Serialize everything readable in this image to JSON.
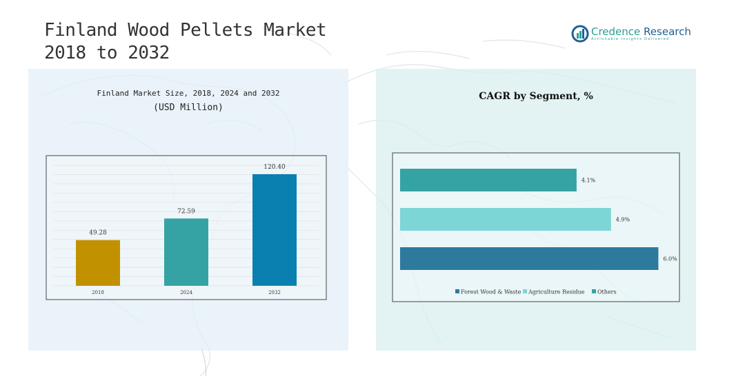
{
  "page": {
    "title_line1": "Finland Wood Pellets Market",
    "title_line2": "2018 to 2032"
  },
  "logo": {
    "name_part1": "Credence",
    "name_part2": " Research",
    "tagline": "Actionable Insights Delivered",
    "colors": {
      "primary": "#1f5f94",
      "accent": "#2a9d8f"
    }
  },
  "chart_data": [
    {
      "type": "bar",
      "title": "Finland Market Size, 2018, 2024 and 2032",
      "subtitle": "(USD Million)",
      "categories": [
        "2018",
        "2024",
        "2032"
      ],
      "values": [
        49.28,
        72.59,
        120.4
      ],
      "value_labels": [
        "49.28",
        "72.59",
        "120.40"
      ],
      "colors": [
        "#c29100",
        "#35a3a3",
        "#0a80b0"
      ],
      "ylim": [
        0,
        130
      ],
      "grid": true,
      "xlabel": "",
      "ylabel": ""
    },
    {
      "type": "bar",
      "orientation": "horizontal",
      "title": "CAGR by Segment, %",
      "categories": [
        "Forest Wood & Waste",
        "Agriculture Residue",
        "Others"
      ],
      "values": [
        4.1,
        4.9,
        6.0
      ],
      "value_labels": [
        "4.1%",
        "4.9%",
        "6.0%"
      ],
      "colors": [
        "#35a3a3",
        "#7dd6d6",
        "#2e7a9e"
      ],
      "xlim": [
        0,
        6.25
      ],
      "legend": {
        "placement": "bottom",
        "entries": [
          "Forest Wood & Waste",
          "Agriculture Residue",
          "Others"
        ],
        "colors": [
          "#2e7a9e",
          "#7dd6d6",
          "#35a3a3"
        ]
      }
    }
  ]
}
